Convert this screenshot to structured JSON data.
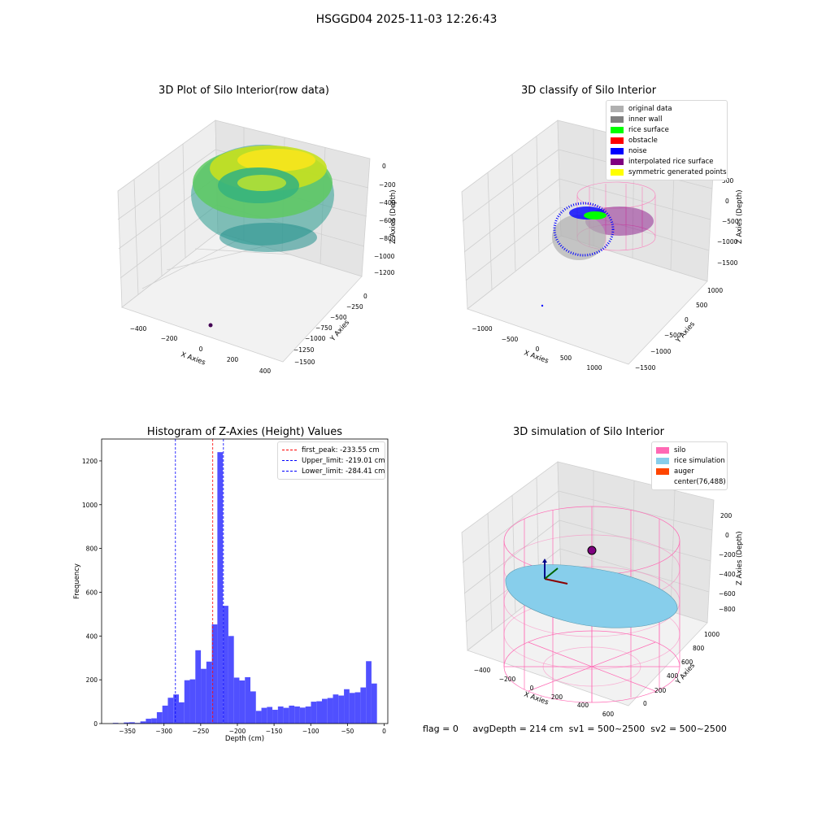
{
  "suptitle": "HSGGD04 2025-11-03 12:26:43",
  "panels": {
    "raw": {
      "title": "3D Plot of Silo Interior(row data)",
      "xlabel": "X Axies",
      "ylabel": "Y Axies",
      "zlabel": "Z Axies (Depth)",
      "xticks": [
        "−400",
        "−200",
        "0",
        "200",
        "400"
      ],
      "yticks": [
        "0",
        "−250",
        "−500",
        "−750",
        "−1000",
        "−1250",
        "−1500"
      ],
      "zticks": [
        "0",
        "−200",
        "−400",
        "−600",
        "−800",
        "−1000",
        "−1200"
      ]
    },
    "classify": {
      "title": "3D classify of Silo Interior",
      "xlabel": "X Axies",
      "ylabel": "Y Axies",
      "zlabel": "Z Axies (Depth)",
      "xticks": [
        "−1000",
        "−500",
        "0",
        "500",
        "1000"
      ],
      "yticks": [
        "1000",
        "500",
        "0",
        "−500",
        "−1000",
        "−1500"
      ],
      "zticks": [
        "500",
        "0",
        "−500",
        "−1000",
        "−1500"
      ],
      "legend": [
        {
          "label": "original data",
          "color": "#b0b0b0"
        },
        {
          "label": "inner wall",
          "color": "#808080"
        },
        {
          "label": "rice surface",
          "color": "#00ff00"
        },
        {
          "label": "obstacle",
          "color": "#ff0000"
        },
        {
          "label": "noise",
          "color": "#0000ff"
        },
        {
          "label": "interpolated rice surface",
          "color": "#800080"
        },
        {
          "label": "symmetric generated points",
          "color": "#ffff00"
        }
      ]
    },
    "simulation": {
      "title": "3D simulation of Silo Interior",
      "xlabel": "X Axies",
      "ylabel": "Y Axies",
      "zlabel": "Z Axies (Depth)",
      "xticks": [
        "−400",
        "−200",
        "0",
        "200",
        "400",
        "600"
      ],
      "yticks": [
        "0",
        "200",
        "400",
        "600",
        "800",
        "1000"
      ],
      "zticks": [
        "200",
        "0",
        "−200",
        "−400",
        "−600",
        "−800"
      ],
      "legend": [
        {
          "label": "silo",
          "color": "#ff69b4"
        },
        {
          "label": "rice simulation",
          "color": "#87ceeb"
        },
        {
          "label": "auger",
          "color": "#ff4500"
        },
        {
          "label": "center(76,488)",
          "color": "#ffffff"
        }
      ]
    }
  },
  "footer": {
    "flag": "flag = 0",
    "avg_depth": "avgDepth = 214 cm",
    "sv1": "sv1 = 500~2500",
    "sv2": "sv2 = 500~2500"
  },
  "chart_data": [
    {
      "type": "bar",
      "title": "Histogram of Z-Axies (Height) Values",
      "xlabel": "Depth (cm)",
      "ylabel": "Frequency",
      "xlim": [
        -385,
        5
      ],
      "ylim": [
        0,
        1300
      ],
      "xticks": [
        -350,
        -300,
        -250,
        -200,
        -150,
        -100,
        -50,
        0
      ],
      "yticks": [
        0,
        200,
        400,
        600,
        800,
        1000,
        1200
      ],
      "bar_color": "#5050ff",
      "bin_width": 7.5,
      "bin_centers": [
        -366,
        -358.5,
        -351,
        -343.5,
        -336,
        -328.5,
        -321,
        -313.5,
        -306,
        -298.5,
        -291,
        -283.5,
        -276,
        -268.5,
        -261,
        -253.5,
        -246,
        -238.5,
        -231,
        -223.5,
        -216,
        -208.5,
        -201,
        -193.5,
        -186,
        -178.5,
        -171,
        -163.5,
        -156,
        -148.5,
        -141,
        -133.5,
        -126,
        -118.5,
        -111,
        -103.5,
        -96,
        -88.5,
        -81,
        -73.5,
        -66,
        -58.5,
        -51,
        -43.5,
        -36,
        -28.5,
        -21,
        -13.5
      ],
      "values": [
        3,
        1,
        5,
        6,
        3,
        10,
        22,
        24,
        52,
        82,
        118,
        133,
        97,
        198,
        202,
        335,
        250,
        283,
        453,
        1240,
        538,
        400,
        210,
        197,
        212,
        147,
        58,
        72,
        76,
        63,
        78,
        72,
        82,
        78,
        73,
        78,
        100,
        102,
        113,
        117,
        133,
        128,
        157,
        140,
        143,
        165,
        285,
        183
      ],
      "lines": [
        {
          "label": "first_peak: -233.55 cm",
          "x": -233.55,
          "color": "#ff0000"
        },
        {
          "label": "Upper_limit: -219.01 cm",
          "x": -219.01,
          "color": "#0000ff"
        },
        {
          "label": "Lower_limit: -284.41 cm",
          "x": -284.41,
          "color": "#0000ff"
        }
      ],
      "legend_position": "upper right"
    }
  ]
}
